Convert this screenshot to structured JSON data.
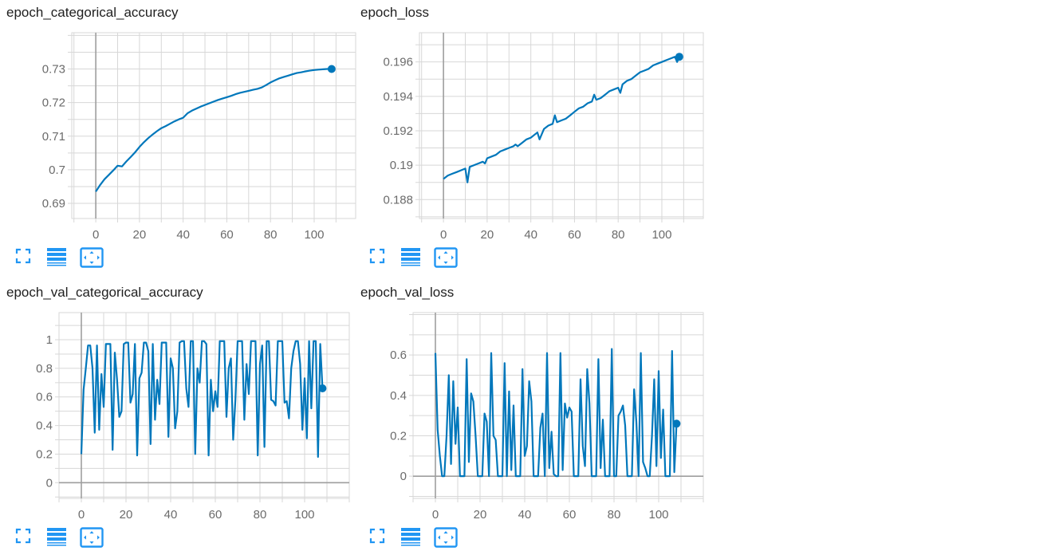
{
  "colors": {
    "series": "#0077bb",
    "grid": "#d7d7d7",
    "zero_line": "#9e9e9e",
    "tick_text": "#6b6b6b",
    "icon": "#2196f3"
  },
  "toolbar_icons": [
    "fullscreen-icon",
    "toggle-log-scale-icon",
    "fit-domain-icon"
  ],
  "cards": [
    {
      "title": "epoch_categorical_accuracy",
      "chart_data": {
        "type": "line",
        "title": "epoch_categorical_accuracy",
        "x_ticks": [
          0,
          20,
          40,
          60,
          80,
          100
        ],
        "x_tick_labels": [
          "0",
          "20",
          "40",
          "60",
          "80",
          "100"
        ],
        "xlim": [
          -11,
          119
        ],
        "y_ticks": [
          0.69,
          0.7,
          0.71,
          0.72,
          0.73
        ],
        "y_tick_labels": [
          "0.69",
          "0.7",
          "0.71",
          "0.72",
          "0.73"
        ],
        "ylim": [
          0.6855,
          0.7408
        ],
        "grid": true,
        "series": [
          {
            "x": [
              0,
              2,
              4,
              6,
              8,
              10,
              12,
              14,
              16,
              18,
              20,
              22,
              24,
              26,
              28,
              30,
              32,
              34,
              36,
              38,
              40,
              42,
              44,
              46,
              48,
              50,
              52,
              54,
              56,
              58,
              60,
              62,
              64,
              66,
              68,
              70,
              72,
              74,
              76,
              78,
              80,
              82,
              84,
              86,
              88,
              90,
              92,
              94,
              96,
              98,
              100,
              102,
              104,
              106,
              108
            ],
            "y": [
              0.6935,
              0.6955,
              0.6972,
              0.6985,
              0.6998,
              0.7012,
              0.701,
              0.7025,
              0.7038,
              0.7052,
              0.7068,
              0.7082,
              0.7094,
              0.7105,
              0.7115,
              0.7124,
              0.713,
              0.7137,
              0.7144,
              0.715,
              0.7155,
              0.7168,
              0.7176,
              0.7182,
              0.7188,
              0.7193,
              0.7198,
              0.7203,
              0.7208,
              0.7212,
              0.7216,
              0.722,
              0.7225,
              0.7229,
              0.7232,
              0.7235,
              0.7238,
              0.7241,
              0.7245,
              0.7252,
              0.726,
              0.7266,
              0.7272,
              0.7276,
              0.728,
              0.7284,
              0.7288,
              0.729,
              0.7293,
              0.7295,
              0.7297,
              0.7298,
              0.7299,
              0.73,
              0.73
            ]
          }
        ]
      }
    },
    {
      "title": "epoch_loss",
      "chart_data": {
        "type": "line",
        "title": "epoch_loss",
        "x_ticks": [
          0,
          20,
          40,
          60,
          80,
          100
        ],
        "x_tick_labels": [
          "0",
          "20",
          "40",
          "60",
          "80",
          "100"
        ],
        "xlim": [
          -11,
          119
        ],
        "y_ticks": [
          0.188,
          0.19,
          0.192,
          0.194,
          0.196
        ],
        "y_tick_labels": [
          "0.188",
          "0.19",
          "0.192",
          "0.194",
          "0.196"
        ],
        "ylim": [
          0.1869,
          0.1977
        ],
        "grid": true,
        "series": [
          {
            "x": [
              0,
              2,
              4,
              6,
              8,
              10,
              11,
              12,
              14,
              16,
              18,
              19,
              20,
              22,
              24,
              26,
              28,
              30,
              32,
              33,
              34,
              36,
              38,
              40,
              42,
              43,
              44,
              46,
              48,
              50,
              51,
              52,
              54,
              56,
              58,
              60,
              62,
              64,
              66,
              68,
              69,
              70,
              72,
              74,
              76,
              78,
              80,
              81,
              82,
              84,
              86,
              88,
              90,
              92,
              94,
              96,
              98,
              100,
              102,
              104,
              106,
              107,
              108
            ],
            "y": [
              0.1892,
              0.1894,
              0.1895,
              0.1896,
              0.1897,
              0.1898,
              0.189,
              0.1899,
              0.19,
              0.1901,
              0.1902,
              0.1901,
              0.1904,
              0.1905,
              0.1906,
              0.1908,
              0.1909,
              0.191,
              0.1911,
              0.1912,
              0.1911,
              0.1913,
              0.1915,
              0.1916,
              0.1918,
              0.1919,
              0.1915,
              0.1921,
              0.1923,
              0.1924,
              0.1929,
              0.1925,
              0.1926,
              0.1927,
              0.1929,
              0.1931,
              0.1933,
              0.1934,
              0.1936,
              0.1937,
              0.1941,
              0.1938,
              0.1939,
              0.1941,
              0.1943,
              0.1944,
              0.1945,
              0.1942,
              0.1947,
              0.1949,
              0.195,
              0.1952,
              0.1954,
              0.1955,
              0.1956,
              0.1958,
              0.1959,
              0.196,
              0.1961,
              0.1962,
              0.1963,
              0.196,
              0.1963
            ]
          }
        ]
      }
    },
    {
      "title": "epoch_val_categorical_accuracy",
      "chart_data": {
        "type": "line",
        "title": "epoch_val_categorical_accuracy",
        "x_ticks": [
          0,
          20,
          40,
          60,
          80,
          100
        ],
        "x_tick_labels": [
          "0",
          "20",
          "40",
          "60",
          "80",
          "100"
        ],
        "xlim": [
          -10,
          120
        ],
        "y_ticks": [
          0,
          0.2,
          0.4,
          0.6,
          0.8,
          1
        ],
        "y_tick_labels": [
          "0",
          "0.2",
          "0.4",
          "0.6",
          "0.8",
          "1"
        ],
        "ylim": [
          -0.11,
          1.19
        ],
        "grid": true,
        "series": [
          {
            "x": [
              0,
              1,
              2,
              3,
              4,
              5,
              6,
              7,
              8,
              9,
              10,
              11,
              12,
              13,
              14,
              15,
              16,
              17,
              18,
              19,
              20,
              21,
              22,
              23,
              24,
              25,
              26,
              27,
              28,
              29,
              30,
              31,
              32,
              33,
              34,
              35,
              36,
              37,
              38,
              39,
              40,
              41,
              42,
              43,
              44,
              45,
              46,
              47,
              48,
              49,
              50,
              51,
              52,
              53,
              54,
              55,
              56,
              57,
              58,
              59,
              60,
              61,
              62,
              63,
              64,
              65,
              66,
              67,
              68,
              69,
              70,
              71,
              72,
              73,
              74,
              75,
              76,
              77,
              78,
              79,
              80,
              81,
              82,
              83,
              84,
              85,
              86,
              87,
              88,
              89,
              90,
              91,
              92,
              93,
              94,
              95,
              96,
              97,
              98,
              99,
              100,
              101,
              102,
              103,
              104,
              105,
              106,
              107,
              108
            ],
            "y": [
              0.2,
              0.65,
              0.8,
              0.96,
              0.96,
              0.8,
              0.35,
              0.96,
              0.37,
              0.76,
              0.53,
              0.97,
              0.97,
              0.97,
              0.23,
              0.91,
              0.72,
              0.46,
              0.5,
              0.97,
              0.98,
              0.98,
              0.56,
              0.62,
              0.97,
              0.19,
              0.73,
              0.77,
              0.98,
              0.98,
              0.92,
              0.27,
              0.97,
              0.44,
              0.72,
              0.55,
              0.98,
              0.98,
              0.98,
              0.32,
              0.87,
              0.8,
              0.38,
              0.5,
              0.98,
              0.99,
              0.99,
              0.66,
              0.53,
              0.99,
              0.99,
              0.2,
              0.8,
              0.7,
              0.99,
              0.99,
              0.97,
              0.19,
              0.72,
              0.5,
              0.64,
              0.53,
              0.99,
              0.99,
              0.99,
              0.46,
              0.8,
              0.87,
              0.3,
              0.58,
              0.99,
              0.99,
              0.99,
              0.44,
              0.83,
              0.62,
              0.99,
              0.99,
              0.99,
              0.19,
              0.83,
              0.96,
              0.25,
              0.99,
              0.99,
              0.58,
              0.57,
              0.54,
              0.99,
              0.99,
              0.99,
              0.56,
              0.57,
              0.45,
              0.8,
              0.92,
              0.99,
              0.99,
              0.83,
              0.37,
              0.73,
              0.31,
              0.99,
              0.52,
              0.99,
              0.99,
              0.18,
              0.97,
              0.66
            ]
          }
        ]
      }
    },
    {
      "title": "epoch_val_loss",
      "chart_data": {
        "type": "line",
        "title": "epoch_val_loss",
        "x_ticks": [
          0,
          20,
          40,
          60,
          80,
          100
        ],
        "x_tick_labels": [
          "0",
          "20",
          "40",
          "60",
          "80",
          "100"
        ],
        "xlim": [
          -10,
          120
        ],
        "y_ticks": [
          0,
          0.2,
          0.4,
          0.6
        ],
        "y_tick_labels": [
          "0",
          "0.2",
          "0.4",
          "0.6"
        ],
        "ylim": [
          -0.11,
          0.81
        ],
        "grid": true,
        "series": [
          {
            "x": [
              0,
              1,
              2,
              3,
              4,
              5,
              6,
              7,
              8,
              9,
              10,
              11,
              12,
              13,
              14,
              15,
              16,
              17,
              18,
              19,
              20,
              21,
              22,
              23,
              24,
              25,
              26,
              27,
              28,
              29,
              30,
              31,
              32,
              33,
              34,
              35,
              36,
              37,
              38,
              39,
              40,
              41,
              42,
              43,
              44,
              45,
              46,
              47,
              48,
              49,
              50,
              51,
              52,
              53,
              54,
              55,
              56,
              57,
              58,
              59,
              60,
              61,
              62,
              63,
              64,
              65,
              66,
              67,
              68,
              69,
              70,
              71,
              72,
              73,
              74,
              75,
              76,
              77,
              78,
              79,
              80,
              81,
              82,
              83,
              84,
              85,
              86,
              87,
              88,
              89,
              90,
              91,
              92,
              93,
              94,
              95,
              96,
              97,
              98,
              99,
              100,
              101,
              102,
              103,
              104,
              105,
              106,
              107,
              108
            ],
            "y": [
              0.61,
              0.23,
              0.1,
              0,
              0,
              0.2,
              0.5,
              0.06,
              0.47,
              0.16,
              0.34,
              0,
              0,
              0,
              0.58,
              0.07,
              0.41,
              0.37,
              0.2,
              0,
              0,
              0,
              0.31,
              0.27,
              0,
              0.61,
              0.2,
              0.18,
              0,
              0,
              0,
              0.56,
              0,
              0.42,
              0.03,
              0.35,
              0,
              0,
              0,
              0.53,
              0.1,
              0.15,
              0.47,
              0.37,
              0,
              0,
              0,
              0.24,
              0.31,
              0,
              0.61,
              0.04,
              0.22,
              0.01,
              0,
              0,
              0.61,
              0.03,
              0.36,
              0.29,
              0.34,
              0.32,
              0,
              0,
              0,
              0.48,
              0.15,
              0.05,
              0.53,
              0.36,
              0,
              0,
              0,
              0.58,
              0.04,
              0.28,
              0,
              0,
              0,
              0.63,
              0,
              0,
              0.3,
              0.32,
              0.35,
              0.25,
              0,
              0,
              0,
              0.43,
              0.27,
              0,
              0.61,
              0.07,
              0.04,
              0,
              0,
              0.2,
              0.48,
              0.05,
              0.52,
              0.09,
              0.33,
              0,
              0,
              0,
              0.62,
              0.02,
              0.26
            ]
          }
        ]
      }
    }
  ]
}
